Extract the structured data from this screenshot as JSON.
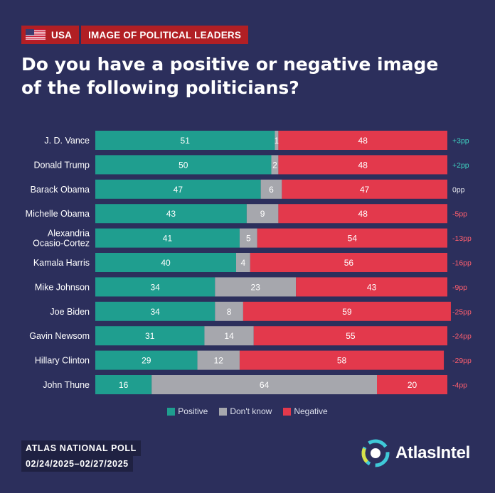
{
  "header": {
    "country": "USA",
    "topic": "IMAGE OF POLITICAL LEADERS",
    "title_line1": "Do you have a positive or negative image",
    "title_line2": "of the following politicians?"
  },
  "colors": {
    "background": "#2c2f5c",
    "positive": "#1f9e8f",
    "dont_know": "#a6a7ad",
    "negative": "#e3394c",
    "diff_positive": "#3fd1c0",
    "diff_neutral": "#e7e8ef",
    "diff_negative": "#ff5f6e"
  },
  "chart_data": {
    "type": "bar",
    "orientation": "horizontal",
    "stacked": true,
    "categories": [
      [
        "J. D. Vance"
      ],
      [
        "Donald Trump"
      ],
      [
        "Barack Obama"
      ],
      [
        "Michelle Obama"
      ],
      [
        "Alexandria",
        "Ocasio-Cortez"
      ],
      [
        "Kamala Harris"
      ],
      [
        "Mike Johnson"
      ],
      [
        "Joe Biden"
      ],
      [
        "Gavin Newsom"
      ],
      [
        "Hillary Clinton"
      ],
      [
        "John Thune"
      ]
    ],
    "series": [
      {
        "name": "Positive",
        "values": [
          51,
          50,
          47,
          43,
          41,
          40,
          34,
          34,
          31,
          29,
          16
        ]
      },
      {
        "name": "Don't know",
        "values": [
          1,
          2,
          6,
          9,
          5,
          4,
          23,
          8,
          14,
          12,
          64
        ]
      },
      {
        "name": "Negative",
        "values": [
          48,
          48,
          47,
          48,
          54,
          56,
          43,
          59,
          55,
          58,
          20
        ]
      }
    ],
    "net_difference": [
      "+3pp",
      "+2pp",
      "0pp",
      "-5pp",
      "-13pp",
      "-16pp",
      "-9pp",
      "-25pp",
      "-24pp",
      "-29pp",
      "-4pp"
    ],
    "xlim": [
      0,
      100
    ],
    "legend_position": "bottom",
    "grid": false
  },
  "footer": {
    "poll_name": "ATLAS NATIONAL POLL",
    "dates": "02/24/2025–02/27/2025",
    "brand": "AtlasIntel"
  }
}
